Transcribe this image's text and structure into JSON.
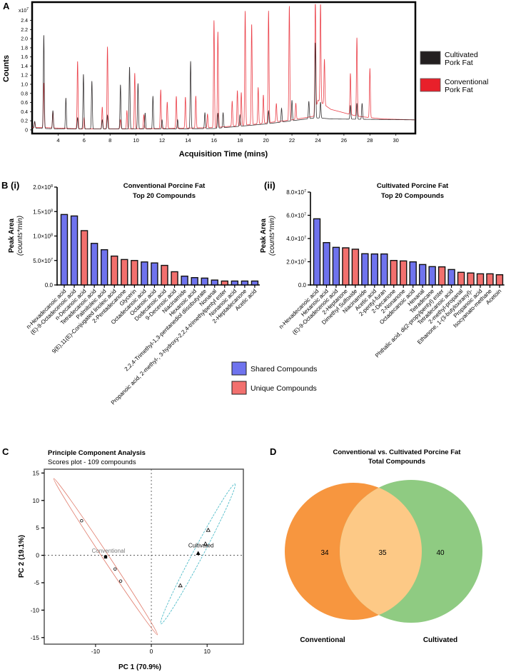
{
  "panels": {
    "a": "A",
    "b": "B (i)",
    "b2": "(ii)",
    "c": "C",
    "d": "D"
  },
  "colors": {
    "cultivated_trace": "#231f20",
    "conventional_trace": "#e8202a",
    "shared": "#6f73ee",
    "unique": "#f2706e",
    "venn_conventional": "#f7963f",
    "venn_cultivated": "#8fcb82",
    "venn_overlap": "#fdc986",
    "pca_conventional": "#e07a6a",
    "pca_cultivated": "#3fb6c4"
  },
  "chart_data": [
    {
      "type": "line",
      "id": "chromatogram",
      "xlabel": "Acquisition Time (mins)",
      "ylabel": "Counts",
      "y_multiplier": "x10",
      "y_multiplier_exp": "7",
      "xlim": [
        2,
        31.5
      ],
      "ylim": [
        -0.08,
        2.8
      ],
      "xticks": [
        4,
        6,
        8,
        10,
        12,
        14,
        16,
        18,
        20,
        22,
        24,
        26,
        28,
        30
      ],
      "yticks": [
        "0",
        "0.2",
        "0.4",
        "0.6",
        "0.8",
        "1.0",
        "1.2",
        "1.4",
        "1.6",
        "1.8",
        "2.0",
        "2.2",
        "2.4"
      ],
      "legend": [
        {
          "line1": "Cultivated",
          "line2": "Pork Fat"
        },
        {
          "line1": "Conventional",
          "line2": "Pork Fat"
        }
      ],
      "legend_position": "right",
      "series": [
        {
          "name": "Conventional Pork Fat",
          "baseline": [
            [
              2,
              0.05
            ],
            [
              3,
              0.05
            ],
            [
              6,
              0.02
            ],
            [
              12,
              0.03
            ],
            [
              16,
              0.05
            ],
            [
              19,
              0.12
            ],
            [
              22,
              0.22
            ],
            [
              23.7,
              0.3
            ],
            [
              24,
              0.65
            ],
            [
              25,
              0.45
            ],
            [
              27,
              0.3
            ],
            [
              29,
              0.24
            ],
            [
              31.5,
              0.22
            ]
          ],
          "peaks": [
            [
              2.2,
              0.12
            ],
            [
              2.9,
              0.98
            ],
            [
              3.6,
              0.35
            ],
            [
              5.5,
              1.48
            ],
            [
              6.0,
              0.25
            ],
            [
              7.4,
              0.48
            ],
            [
              7.8,
              1.8
            ],
            [
              8.8,
              0.2
            ],
            [
              9.3,
              0.4
            ],
            [
              9.9,
              1.22
            ],
            [
              10.6,
              0.3
            ],
            [
              11.9,
              0.85
            ],
            [
              12.4,
              0.58
            ],
            [
              13.1,
              0.7
            ],
            [
              13.8,
              0.68
            ],
            [
              14.6,
              0.7
            ],
            [
              15.5,
              0.3
            ],
            [
              16.0,
              2.35
            ],
            [
              16.3,
              2.1
            ],
            [
              17.4,
              0.55
            ],
            [
              17.8,
              0.77
            ],
            [
              18.1,
              0.72
            ],
            [
              18.4,
              2.5
            ],
            [
              18.9,
              2.2
            ],
            [
              19.4,
              0.8
            ],
            [
              19.8,
              0.62
            ],
            [
              20.2,
              2.45
            ],
            [
              20.8,
              0.4
            ],
            [
              21.8,
              2.5
            ],
            [
              22.3,
              0.35
            ],
            [
              23.8,
              2.5
            ],
            [
              24.2,
              2.18
            ],
            [
              24.5,
              1.0
            ],
            [
              26.5,
              0.9
            ],
            [
              27.0,
              1.72
            ],
            [
              28.0,
              1.08
            ]
          ]
        },
        {
          "name": "Cultivated Pork Fat",
          "baseline": [
            [
              2,
              0.04
            ],
            [
              4,
              0.02
            ],
            [
              12,
              0.02
            ],
            [
              16,
              0.03
            ],
            [
              18,
              0.08
            ],
            [
              20,
              0.13
            ],
            [
              22,
              0.2
            ],
            [
              23.7,
              0.26
            ],
            [
              24.2,
              0.26
            ],
            [
              25,
              0.24
            ],
            [
              31.5,
              0.22
            ]
          ],
          "peaks": [
            [
              2.2,
              0.15
            ],
            [
              2.9,
              2.05
            ],
            [
              3.6,
              0.4
            ],
            [
              4.6,
              0.68
            ],
            [
              5.5,
              0.25
            ],
            [
              5.95,
              1.2
            ],
            [
              6.6,
              1.05
            ],
            [
              7.4,
              0.2
            ],
            [
              7.8,
              0.3
            ],
            [
              8.8,
              0.97
            ],
            [
              9.5,
              1.36
            ],
            [
              10.15,
              1.0
            ],
            [
              10.7,
              0.35
            ],
            [
              11.3,
              0.72
            ],
            [
              12.0,
              0.2
            ],
            [
              13.2,
              0.2
            ],
            [
              14.2,
              1.48
            ],
            [
              15.3,
              0.35
            ],
            [
              16.3,
              0.33
            ],
            [
              16.7,
              0.33
            ],
            [
              18.0,
              0.25
            ],
            [
              20.2,
              0.28
            ],
            [
              21.2,
              0.3
            ],
            [
              22.0,
              0.45
            ],
            [
              23.3,
              0.38
            ],
            [
              23.8,
              1.65
            ],
            [
              24.2,
              0.35
            ],
            [
              26.5,
              0.3
            ],
            [
              27.0,
              0.35
            ],
            [
              27.4,
              0.35
            ]
          ]
        }
      ]
    },
    {
      "type": "bar",
      "id": "conventional_top20",
      "title": "Conventional Porcine Fat",
      "subtitle": "Top 20 Compounds",
      "ylabel": "Peak Area",
      "ylabel_unit": "(counts*min)",
      "ylim": [
        0,
        200000000
      ],
      "yticks": [
        {
          "v": 0,
          "label": "0.0",
          "exp": ""
        },
        {
          "v": 50000000,
          "label": "5.0×10",
          "exp": "7"
        },
        {
          "v": 100000000,
          "label": "1.0×10",
          "exp": "8"
        },
        {
          "v": 150000000,
          "label": "1.5×10",
          "exp": "8"
        },
        {
          "v": 200000000,
          "label": "2.0×10",
          "exp": "8"
        }
      ],
      "categories": [
        "n-Hexadecanoic acid",
        "(E)-9-Octadecenoic acid",
        "n-Decanoic acid",
        "Tetradecanoic acid",
        "Palmitoleic acid",
        "9(E),11(E)-Conjugated linoleic acid",
        "2-Pentadecanone",
        "Glycerin",
        "Octadecanoic acid",
        "Octanoic acid",
        "Dodecanoic acid",
        "9-Decenoic acid",
        "Niacinamide",
        "Hexanoic acid",
        "2,2,4-Trimethyl-1,3-pentanediol diisobutyrate",
        "Nonanal",
        "Propanoic acid, 2-methyl-, 3-hydroxy-2,2,4-trimethylpentyl ester",
        "Nonanoic acid",
        "2-Heptadecanone",
        "Acetic acid"
      ],
      "values": [
        144000000,
        141000000,
        111000000,
        85000000,
        72000000,
        59000000,
        52000000,
        50000000,
        47000000,
        45000000,
        40000000,
        27000000,
        18000000,
        15000000,
        14000000,
        10000000,
        8000000,
        8000000,
        8000000,
        8000000
      ],
      "group": [
        "shared",
        "shared",
        "unique",
        "shared",
        "shared",
        "unique",
        "unique",
        "unique",
        "shared",
        "shared",
        "unique",
        "unique",
        "shared",
        "shared",
        "shared",
        "shared",
        "unique",
        "shared",
        "shared",
        "shared"
      ]
    },
    {
      "type": "bar",
      "id": "cultivated_top20",
      "title": "Cultivated Porcine Fat",
      "subtitle": "Top 20 Compounds",
      "ylabel": "Peak Area",
      "ylabel_unit": "(counts*min)",
      "ylim": [
        0,
        80000000
      ],
      "yticks": [
        {
          "v": 0,
          "label": "0.0",
          "exp": ""
        },
        {
          "v": 20000000,
          "label": "2.0×10",
          "exp": "7"
        },
        {
          "v": 40000000,
          "label": "4.0×10",
          "exp": "7"
        },
        {
          "v": 60000000,
          "label": "6.0×10",
          "exp": "7"
        },
        {
          "v": 80000000,
          "label": "8.0×10",
          "exp": "7"
        }
      ],
      "categories": [
        "n-Hexadecanoic acid",
        "Hexanoic acid",
        "(E)-9-Octadecenoic acid",
        "2-Heptanone",
        "Dimethyl Sulfoxide",
        "Niacinamide",
        "Acetic acid",
        "2-pentyl-furan",
        "2-Decanone",
        "2-Nonanone",
        "Octadecanoic acid",
        "Hexanal",
        "Tetradecane",
        "Phthalic acid, di(2-propylpentyl) ester",
        "Tetradecanoic acid",
        "2-methyl-propanal",
        "Ethanone, 1-(3-butyloxiranyl)-",
        "Propanoic acid",
        "Isocyanato-methane",
        "Acetoin"
      ],
      "values": [
        57000000,
        36500000,
        32400000,
        32000000,
        30800000,
        26900000,
        26700000,
        26700000,
        21100000,
        20700000,
        19900000,
        17600000,
        15800000,
        15600000,
        13300000,
        10900000,
        10300000,
        9600000,
        9600000,
        8800000
      ],
      "group": [
        "shared",
        "shared",
        "shared",
        "unique",
        "unique",
        "shared",
        "shared",
        "shared",
        "unique",
        "unique",
        "shared",
        "shared",
        "shared",
        "unique",
        "shared",
        "unique",
        "unique",
        "unique",
        "unique",
        "unique"
      ]
    },
    {
      "type": "scatter",
      "id": "pca",
      "title": "Principle Component Analysis",
      "subtitle": "Scores plot - 109 compounds",
      "xlabel": "PC 1 (70.9%)",
      "ylabel": "PC 2 (19.1%)",
      "xlim": [
        -19.2,
        16.5
      ],
      "ylim": [
        -16.2,
        15.7
      ],
      "xticks": [
        -10,
        0,
        10
      ],
      "yticks": [
        15,
        10,
        5,
        0,
        -5,
        -10,
        -15
      ],
      "groups": [
        {
          "name": "Conventional",
          "marker": "circle",
          "points": [
            [
              -12.5,
              6.3
            ],
            [
              -6.5,
              -2.5
            ],
            [
              -5.5,
              -4.7
            ]
          ],
          "centroid": [
            -8.2,
            -0.3
          ],
          "ellipse_axis": [
            [
              -17.5,
              14
            ],
            [
              1.1,
              -14.5
            ]
          ],
          "ellipse_halfwidth": 0.55
        },
        {
          "name": "Cultivated",
          "marker": "triangle",
          "points": [
            [
              10.2,
              4.6
            ],
            [
              9.7,
              2.1
            ],
            [
              5.2,
              -5.5
            ]
          ],
          "centroid": [
            8.4,
            0.4
          ],
          "ellipse_axis": [
            [
              1.7,
              -12.5
            ],
            [
              15,
              13
            ]
          ],
          "ellipse_halfwidth": 0.9
        }
      ]
    },
    {
      "type": "venn",
      "id": "venn",
      "title": "Conventional vs. Cultivated Porcine Fat",
      "subtitle": "Total Compounds",
      "sets": [
        "Conventional",
        "Cultivated"
      ],
      "only_conventional": "34",
      "shared": "35",
      "only_cultivated": "40"
    }
  ],
  "bar_legend": {
    "shared": "Shared Compounds",
    "unique": "Unique Compounds"
  }
}
